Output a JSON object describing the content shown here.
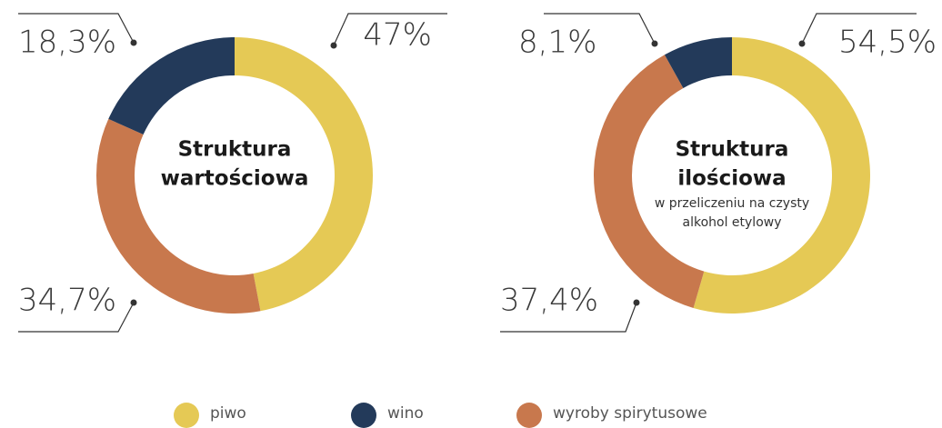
{
  "chart_data": [
    {
      "type": "pie",
      "title": [
        "Struktura",
        "wartościowa"
      ],
      "values": [
        47,
        18.3,
        34.7
      ],
      "value_labels": [
        "47%",
        "18,3%",
        "34,7%"
      ]
    },
    {
      "type": "pie",
      "title": [
        "Struktura",
        "ilościowa"
      ],
      "subtitle": [
        "w przeliczeniu na czysty",
        "alkohol etylowy"
      ],
      "values": [
        54.5,
        8.1,
        37.4
      ],
      "value_labels": [
        "54,5%",
        "8,1%",
        "37,4%"
      ]
    }
  ],
  "legend": {
    "labels": [
      "piwo",
      "wino",
      "wyroby spirytusowe"
    ],
    "colors": [
      "#e5c955",
      "#233a5a",
      "#c8784d"
    ]
  }
}
